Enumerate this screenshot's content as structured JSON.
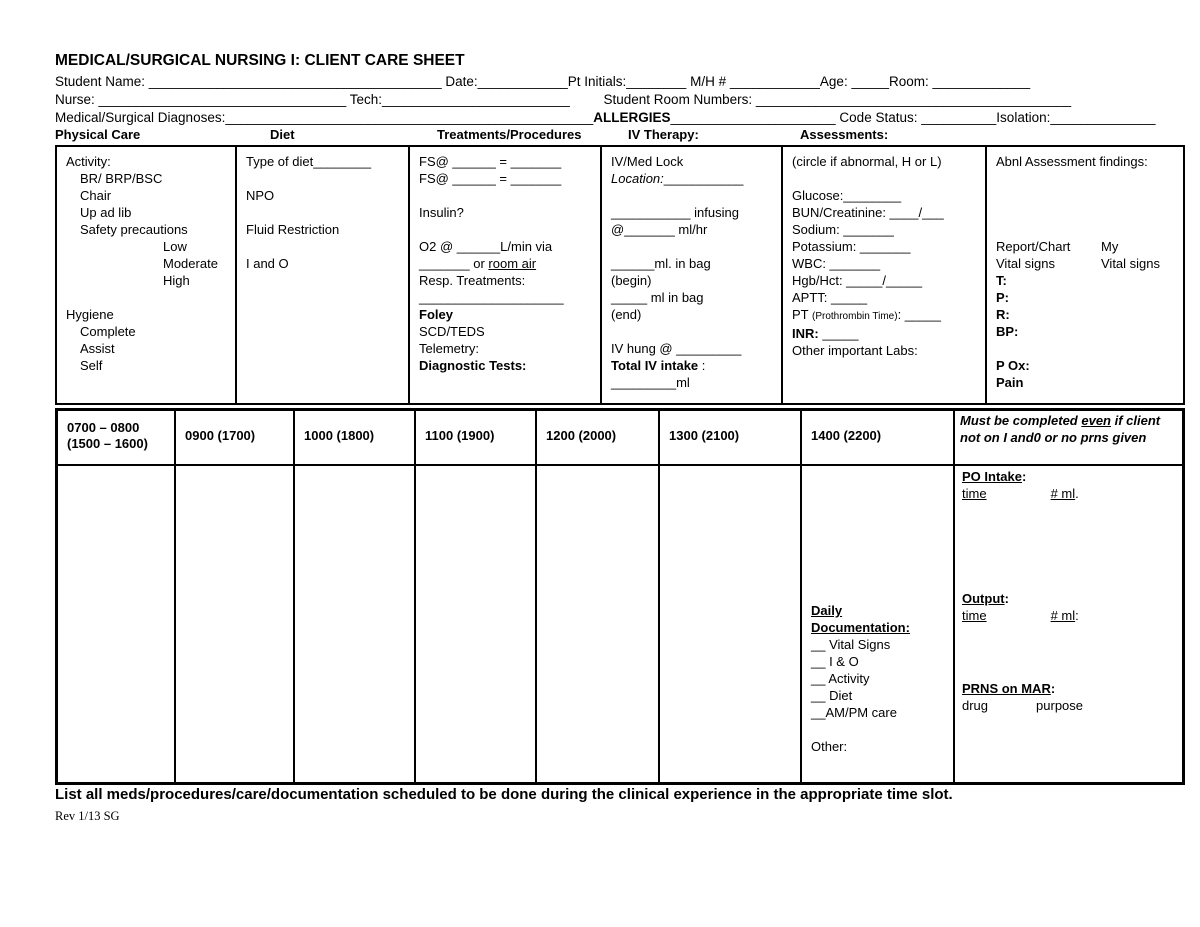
{
  "title": "MEDICAL/SURGICAL NURSING I: CLIENT CARE SHEET",
  "header": {
    "line1": "Student Name: _______________________________________ Date:____________Pt Initials:________ M/H # ____________Age: _____Room: _____________",
    "line2": "Nurse: _________________________________ Tech:_________________________         Student Room Numbers: __________________________________________",
    "line3_pre": "Medical/Surgical Diagnoses:_________________________________________________",
    "line3_allergies": "ALLERGIES",
    "line3_post": "______________________ Code Status: __________Isolation:______________"
  },
  "section_headers": {
    "physical_care": "Physical Care",
    "diet": "Diet",
    "treatments": "Treatments/Procedures",
    "iv_therapy": "IV Therapy:",
    "assessments": "Assessments:"
  },
  "care_table": {
    "physical_care": [
      {
        "t": "Activity:"
      },
      {
        "t": "BR/ BRP/BSC",
        "cls": "ind1"
      },
      {
        "t": "Chair",
        "cls": "ind1"
      },
      {
        "t": "Up ad lib",
        "cls": "ind1"
      },
      {
        "t": "Safety precautions",
        "cls": "ind1"
      },
      {
        "t": "Low",
        "cls": "ind2"
      },
      {
        "t": "Moderate",
        "cls": "ind2"
      },
      {
        "t": "High",
        "cls": "ind2"
      },
      {
        "t": ""
      },
      {
        "t": "Hygiene"
      },
      {
        "t": "Complete",
        "cls": "ind1"
      },
      {
        "t": "Assist",
        "cls": "ind1"
      },
      {
        "t": "Self",
        "cls": "ind1"
      }
    ],
    "diet": [
      {
        "t": "Type of diet________"
      },
      {
        "t": ""
      },
      {
        "t": "NPO"
      },
      {
        "t": ""
      },
      {
        "t": "Fluid Restriction"
      },
      {
        "t": ""
      },
      {
        "t": "I and O"
      }
    ],
    "treatments": [
      {
        "t": "FS@ ______ = _______"
      },
      {
        "t": "FS@ ______ = _______"
      },
      {
        "t": ""
      },
      {
        "t": "Insulin?"
      },
      {
        "t": ""
      },
      {
        "t": "O2 @ ______L/min via"
      },
      {
        "parts": [
          {
            "t": "_______ or "
          },
          {
            "t": "room air",
            "cls": "u"
          }
        ]
      },
      {
        "t": "Resp. Treatments:"
      },
      {
        "t": "____________________"
      },
      {
        "t": "Foley",
        "cls": "b"
      },
      {
        "t": "SCD/TEDS"
      },
      {
        "t": "Telemetry:"
      },
      {
        "t": "Diagnostic Tests:",
        "cls": "b"
      }
    ],
    "iv_therapy": [
      {
        "t": "IV/Med Lock"
      },
      {
        "parts": [
          {
            "t": "Location:",
            "cls": "i"
          },
          {
            "t": "___________"
          }
        ]
      },
      {
        "t": ""
      },
      {
        "t": "___________ infusing"
      },
      {
        "t": "@_______ ml/hr"
      },
      {
        "t": ""
      },
      {
        "t": "______ml. in bag"
      },
      {
        "t": "(begin)"
      },
      {
        "t": "_____ ml in bag"
      },
      {
        "t": "(end)"
      },
      {
        "t": ""
      },
      {
        "t": "IV hung @ _________"
      },
      {
        "parts": [
          {
            "t": "Total IV intake",
            "cls": "b"
          },
          {
            "t": " :"
          }
        ]
      },
      {
        "t": "_________ml"
      }
    ],
    "labs": [
      {
        "t": "(circle if abnormal, H or L)"
      },
      {
        "t": ""
      },
      {
        "t": "Glucose:________"
      },
      {
        "t": "BUN/Creatinine: ____/___"
      },
      {
        "t": "Sodium: _______"
      },
      {
        "t": "Potassium: _______"
      },
      {
        "t": "WBC: _______"
      },
      {
        "t": "Hgb/Hct: _____/_____"
      },
      {
        "t": "APTT: _____"
      },
      {
        "parts": [
          {
            "t": "PT "
          },
          {
            "t": "(Prothrombin Time)",
            "cls": "sm"
          },
          {
            "t": ": _____"
          }
        ]
      },
      {
        "parts": [
          {
            "t": "INR:",
            "cls": "b"
          },
          {
            "t": " _____"
          }
        ]
      },
      {
        "t": "Other important Labs:"
      }
    ],
    "abnl_assessment": [
      {
        "t": "Abnl Assessment findings:"
      },
      {
        "t": ""
      },
      {
        "t": ""
      },
      {
        "t": ""
      },
      {
        "t": ""
      },
      {
        "parts": [
          {
            "t": "Report/Chart",
            "cls": "cw"
          },
          {
            "t": "My"
          }
        ]
      },
      {
        "parts": [
          {
            "t": "Vital signs",
            "cls": "cw"
          },
          {
            "t": "Vital signs"
          }
        ]
      },
      {
        "t": "T:",
        "cls": "b"
      },
      {
        "t": "P:",
        "cls": "b"
      },
      {
        "t": "R:",
        "cls": "b"
      },
      {
        "t": "BP:",
        "cls": "b"
      },
      {
        "t": ""
      },
      {
        "t": "P Ox:",
        "cls": "b"
      },
      {
        "t": "Pain",
        "cls": "b"
      }
    ]
  },
  "schedule_table": {
    "time_headers": [
      "0700 – 0800\n(1500 – 1600)",
      "0900 (1700)",
      "1000 (1800)",
      "1100 (1900)",
      "1200 (2000)",
      "1300 (2100)",
      "1400 (2200)"
    ],
    "note_header": [
      {
        "parts": [
          {
            "t": "Must be completed "
          },
          {
            "t": "even",
            "cls": "u"
          },
          {
            "t": " if client not on I and0 or no prns given"
          }
        ]
      }
    ],
    "daily_documentation": [
      {
        "t": "Daily",
        "cls": "b u"
      },
      {
        "t": "Documentation:",
        "cls": "b u"
      },
      {
        "t": "__ Vital Signs"
      },
      {
        "t": "__ I & O"
      },
      {
        "t": "__ Activity"
      },
      {
        "t": "__ Diet"
      },
      {
        "t": "__AM/PM care"
      },
      {
        "t": ""
      },
      {
        "t": "Other:"
      }
    ],
    "po_intake": [
      {
        "parts": [
          {
            "t": "PO Intake",
            "cls": "b u"
          },
          {
            "t": ":",
            "cls": "b"
          }
        ]
      },
      {
        "parts": [
          {
            "t": "time",
            "cls": "u"
          },
          {
            "cls": "g60"
          },
          {
            "t": "# ml",
            "cls": "u"
          },
          {
            "t": "."
          }
        ]
      }
    ],
    "output": [
      {
        "parts": [
          {
            "t": "Output",
            "cls": "b u"
          },
          {
            "t": ":",
            "cls": "b"
          }
        ]
      },
      {
        "parts": [
          {
            "t": "time",
            "cls": "u"
          },
          {
            "cls": "g60"
          },
          {
            "t": "# ml",
            "cls": "u"
          },
          {
            "t": ":"
          }
        ]
      }
    ],
    "prns": [
      {
        "parts": [
          {
            "t": "PRNS on MAR",
            "cls": "b u"
          },
          {
            "t": ":",
            "cls": "b"
          }
        ]
      },
      {
        "parts": [
          {
            "t": "drug"
          },
          {
            "cls": "g48"
          },
          {
            "t": "purpose"
          }
        ]
      }
    ]
  },
  "footer": {
    "instruction": "List all meds/procedures/care/documentation scheduled to be done during the clinical experience in the appropriate time slot.",
    "revision": "Rev 1/13 SG"
  }
}
